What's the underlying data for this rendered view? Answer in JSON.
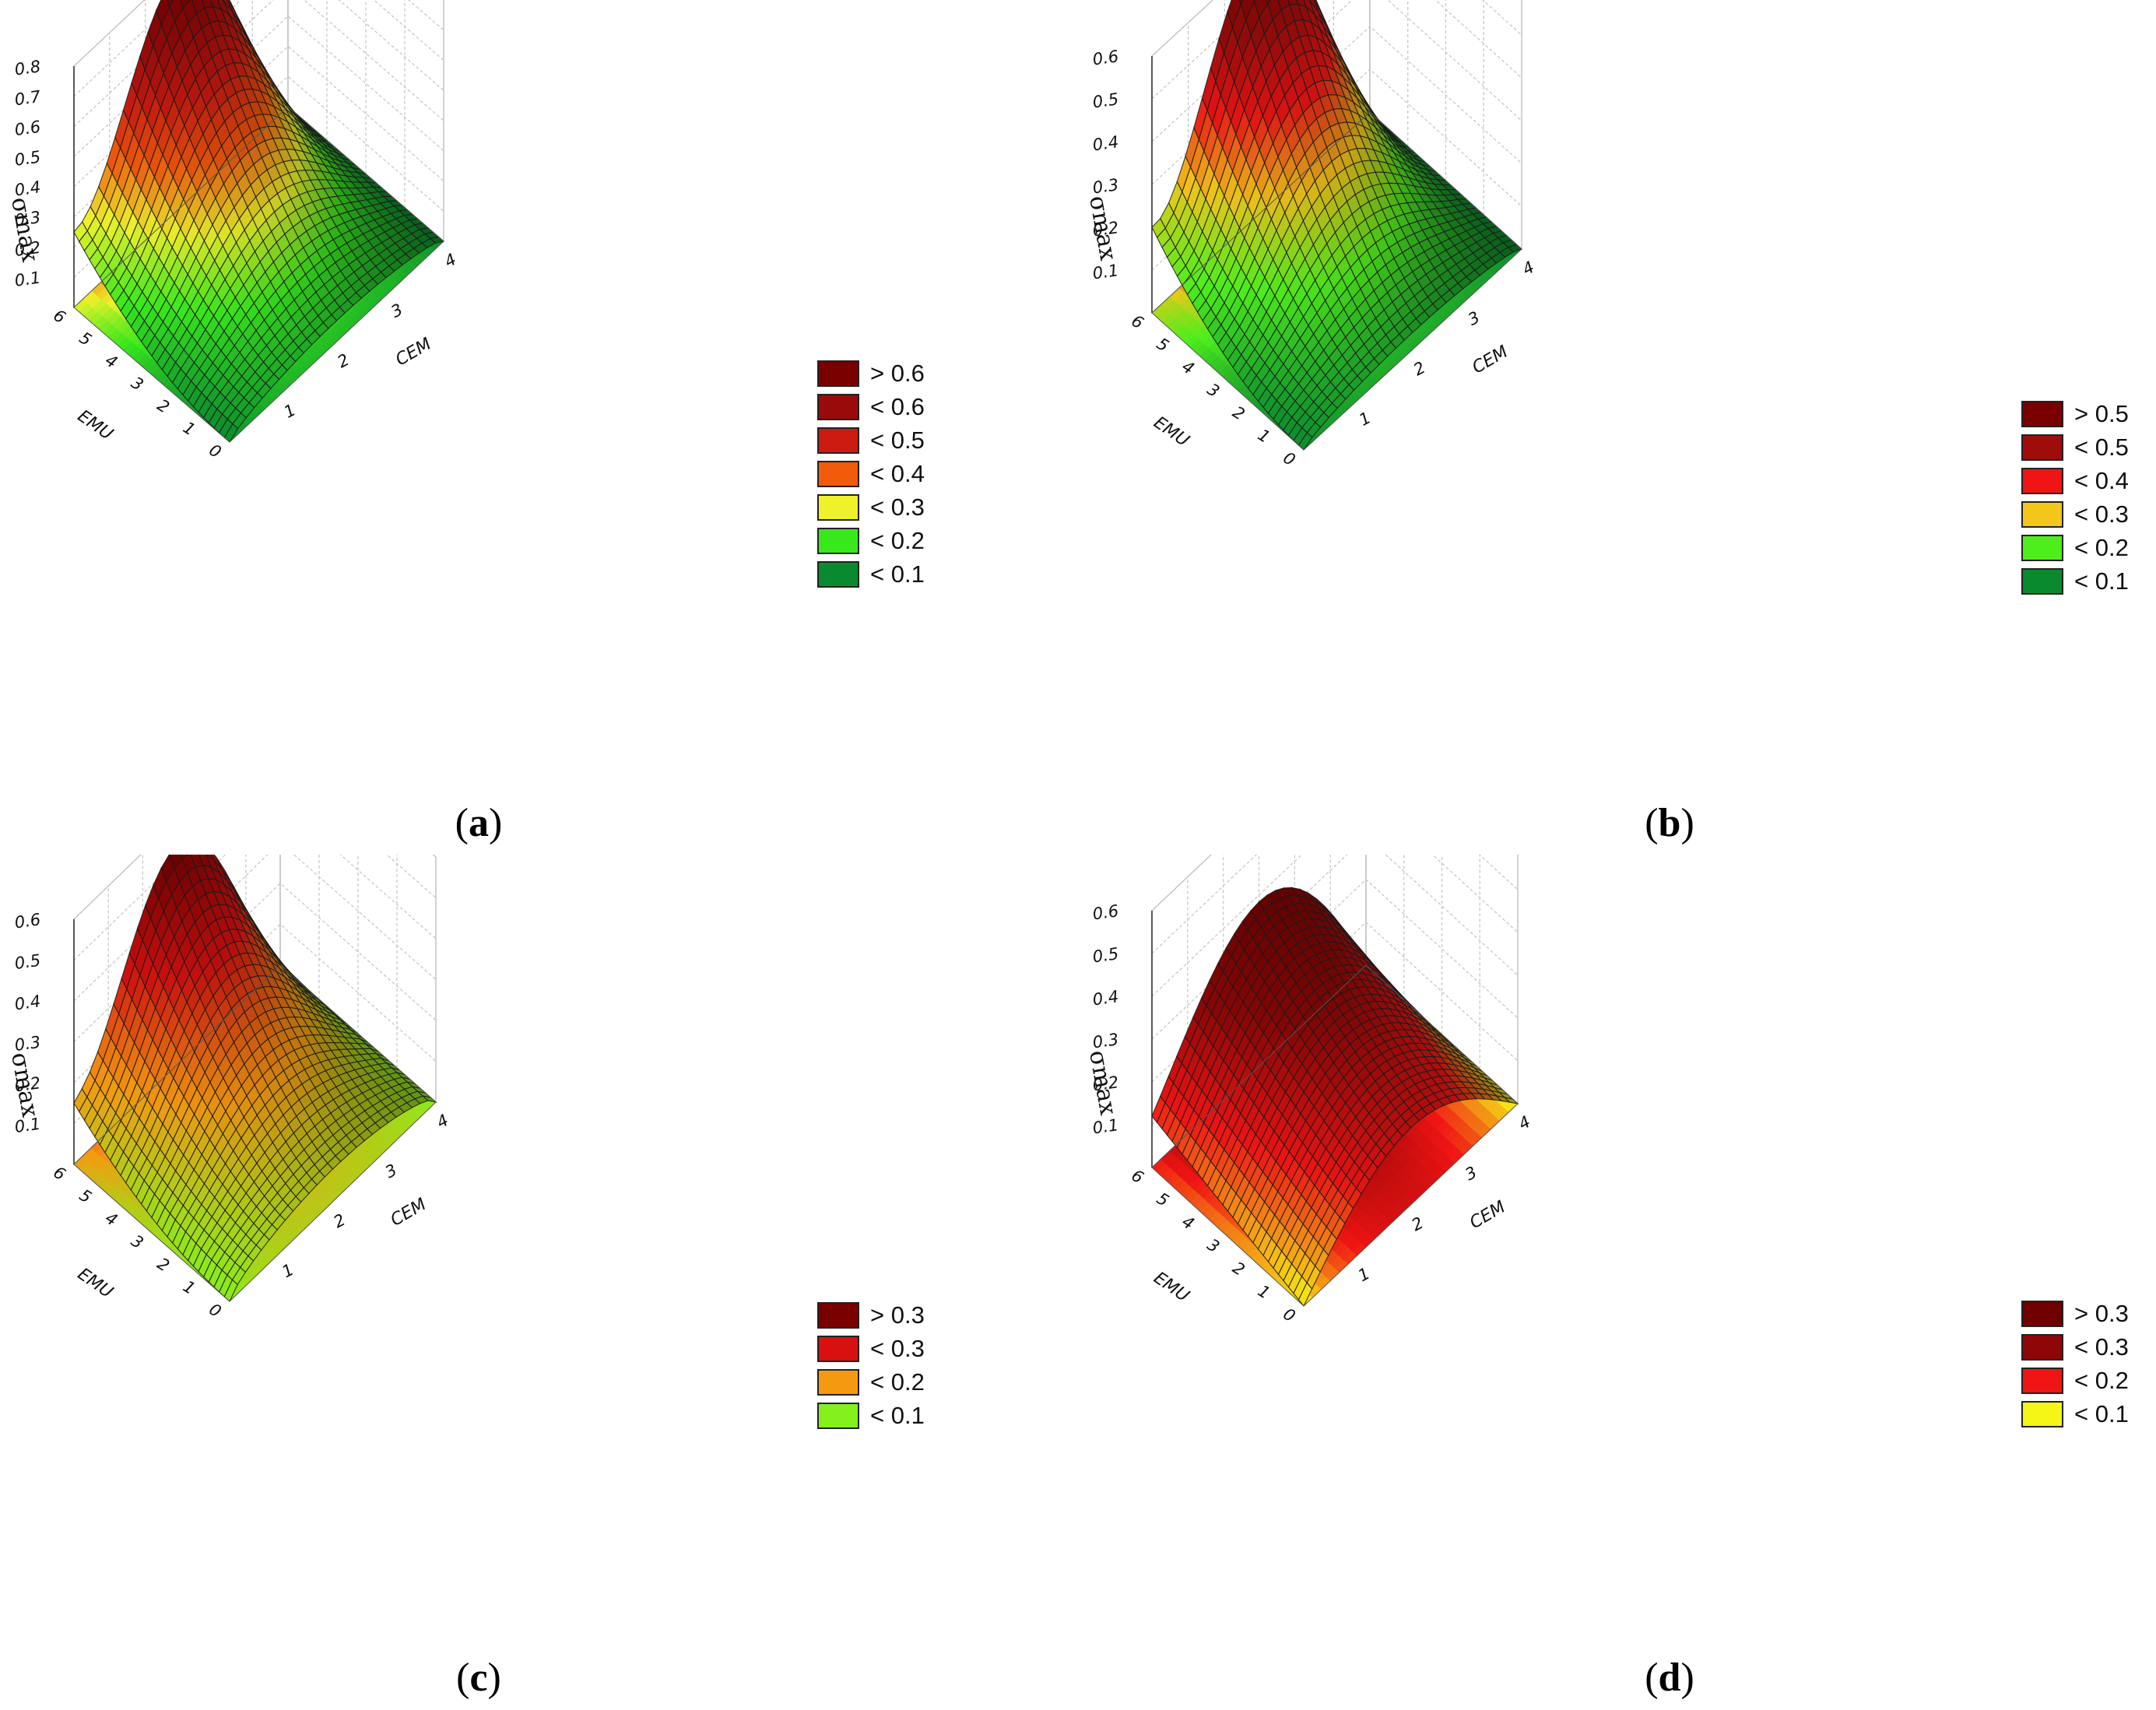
{
  "chart_data": [
    {
      "type": "surface3d",
      "panel_label": "a",
      "zlabel": "σmax",
      "xlabel": "CEM",
      "ylabel": "EMU",
      "x_ticks": [
        "1",
        "2",
        "3",
        "4"
      ],
      "y_ticks": [
        "0",
        "1",
        "2",
        "3",
        "4",
        "5",
        "6"
      ],
      "z_ticks": [
        "0.1",
        "0.2",
        "0.3",
        "0.4",
        "0.5",
        "0.6",
        "0.7",
        "0.8"
      ],
      "x_range": [
        0,
        4
      ],
      "y_range": [
        0,
        6
      ],
      "z_range": [
        0,
        0.8
      ],
      "surface_corners": {
        "emu6_cem0": 0.25,
        "peak": 0.78,
        "emu0_cem2": 0.07
      },
      "legend": [
        {
          "label": "> 0.6",
          "color": "#7a0000"
        },
        {
          "label": "< 0.6",
          "color": "#9a0a0a"
        },
        {
          "label": "< 0.5",
          "color": "#cc1a10"
        },
        {
          "label": "< 0.4",
          "color": "#f25a0c"
        },
        {
          "label": "< 0.3",
          "color": "#eef22a"
        },
        {
          "label": "< 0.2",
          "color": "#38e81c"
        },
        {
          "label": "< 0.1",
          "color": "#0a8a2e"
        }
      ]
    },
    {
      "type": "surface3d",
      "panel_label": "b",
      "zlabel": "σmax",
      "xlabel": "CEM",
      "ylabel": "EMU",
      "x_ticks": [
        "1",
        "2",
        "3",
        "4"
      ],
      "y_ticks": [
        "0",
        "1",
        "2",
        "3",
        "4",
        "5",
        "6"
      ],
      "z_ticks": [
        "0.1",
        "0.2",
        "0.3",
        "0.4",
        "0.5",
        "0.6"
      ],
      "x_range": [
        0,
        4
      ],
      "y_range": [
        0,
        6
      ],
      "z_range": [
        0,
        0.6
      ],
      "surface_corners": {
        "emu6_cem0": 0.2,
        "peak": 0.62,
        "emu0_cem2": 0.05
      },
      "legend": [
        {
          "label": "> 0.5",
          "color": "#7a0000"
        },
        {
          "label": "< 0.5",
          "color": "#9e0c0c"
        },
        {
          "label": "< 0.4",
          "color": "#f01414"
        },
        {
          "label": "< 0.3",
          "color": "#f2c71a"
        },
        {
          "label": "< 0.2",
          "color": "#4eee1c"
        },
        {
          "label": "< 0.1",
          "color": "#0a8a2e"
        }
      ]
    },
    {
      "type": "surface3d",
      "panel_label": "c",
      "zlabel": "σmax",
      "xlabel": "CEM",
      "ylabel": "EMU",
      "x_ticks": [
        "1",
        "2",
        "3",
        "4"
      ],
      "y_ticks": [
        "0",
        "1",
        "2",
        "3",
        "4",
        "5",
        "6"
      ],
      "z_ticks": [
        "0.1",
        "0.2",
        "0.3",
        "0.4",
        "0.5",
        "0.6"
      ],
      "x_range": [
        0,
        4
      ],
      "y_range": [
        0,
        6
      ],
      "z_range": [
        0,
        0.6
      ],
      "surface_corners": {
        "emu6_cem0": 0.15,
        "peak": 0.53,
        "emu0_cem2": 0.08
      },
      "legend": [
        {
          "label": "> 0.3",
          "color": "#7a0000"
        },
        {
          "label": "< 0.3",
          "color": "#d81010"
        },
        {
          "label": "< 0.2",
          "color": "#f59a10"
        },
        {
          "label": "< 0.1",
          "color": "#84f01c"
        }
      ]
    },
    {
      "type": "surface3d",
      "panel_label": "d",
      "zlabel": "σmax",
      "xlabel": "CEM",
      "ylabel": "EMU",
      "x_ticks": [
        "1",
        "2",
        "3",
        "4"
      ],
      "y_ticks": [
        "0",
        "1",
        "2",
        "3",
        "4",
        "5",
        "6"
      ],
      "z_ticks": [
        "0.1",
        "0.2",
        "0.3",
        "0.4",
        "0.5",
        "0.6"
      ],
      "x_range": [
        0,
        4
      ],
      "y_range": [
        0,
        6
      ],
      "z_range": [
        0,
        0.6
      ],
      "surface_corners": {
        "emu6_cem0": 0.12,
        "peak": 0.42,
        "emu0_cem2": 0.18
      },
      "legend": [
        {
          "label": "> 0.3",
          "color": "#6e0000"
        },
        {
          "label": "< 0.3",
          "color": "#8e0606"
        },
        {
          "label": "< 0.2",
          "color": "#f01414"
        },
        {
          "label": "< 0.1",
          "color": "#f5f516"
        }
      ]
    }
  ]
}
